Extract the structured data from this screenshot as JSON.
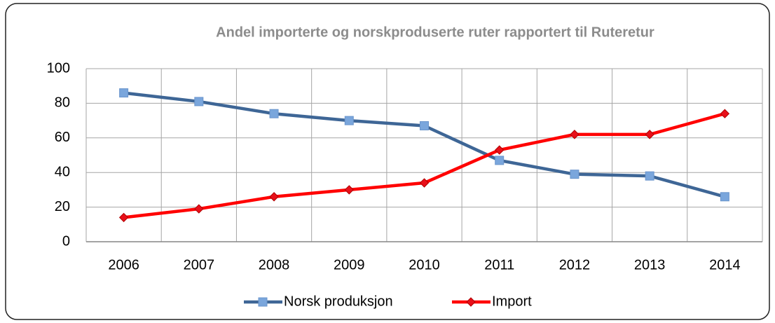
{
  "chart_data": {
    "type": "line",
    "title": "Andel importerte og norskproduserte ruter rapportert til  Ruteretur",
    "categories": [
      "2006",
      "2007",
      "2008",
      "2009",
      "2010",
      "2011",
      "2012",
      "2013",
      "2014"
    ],
    "series": [
      {
        "name": "Norsk produksjon",
        "color": "#3e6696",
        "marker_color": "#7aa6dc",
        "marker": "square",
        "values": [
          86,
          81,
          74,
          70,
          67,
          47,
          39,
          38,
          26
        ]
      },
      {
        "name": "Import",
        "color": "#ff0000",
        "marker_color": "#e8101a",
        "marker": "diamond",
        "values": [
          14,
          19,
          26,
          30,
          34,
          53,
          62,
          62,
          74
        ]
      }
    ],
    "ylim": [
      0,
      100
    ],
    "yticks": [
      0,
      20,
      40,
      60,
      80,
      100
    ],
    "grid": true,
    "legend": "bottom"
  }
}
